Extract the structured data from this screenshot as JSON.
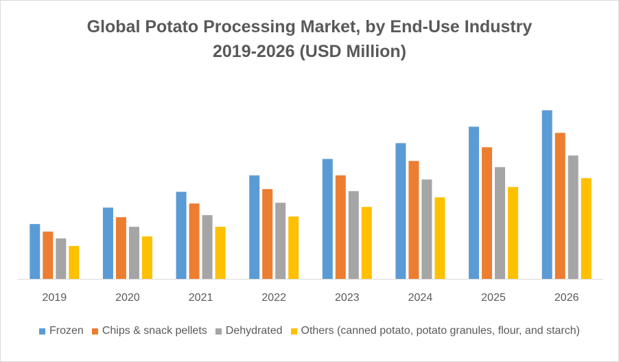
{
  "chart_data": {
    "type": "bar",
    "title": "Global Potato Processing Market, by End-Use Industry",
    "subtitle": "2019-2026 (USD Million)",
    "xlabel": "",
    "ylabel": "",
    "categories": [
      "2019",
      "2020",
      "2021",
      "2022",
      "2023",
      "2024",
      "2025",
      "2026"
    ],
    "series": [
      {
        "name": "Frozen",
        "color": "#5b9bd5",
        "values": [
          80,
          104,
          127,
          151,
          175,
          198,
          222,
          246
        ]
      },
      {
        "name": "Chips & snack pellets",
        "color": "#ed7d31",
        "values": [
          69,
          90,
          110,
          131,
          151,
          172,
          192,
          213
        ]
      },
      {
        "name": "Dehydrated",
        "color": "#a5a5a5",
        "values": [
          59,
          76,
          93,
          111,
          128,
          145,
          163,
          180
        ]
      },
      {
        "name": "Others (canned potato, potato granules, flour, and starch)",
        "color": "#ffc000",
        "values": [
          48,
          62,
          76,
          91,
          105,
          119,
          134,
          147
        ]
      }
    ],
    "ylim": [
      0,
      250
    ],
    "grid": false,
    "legend_position": "bottom"
  }
}
